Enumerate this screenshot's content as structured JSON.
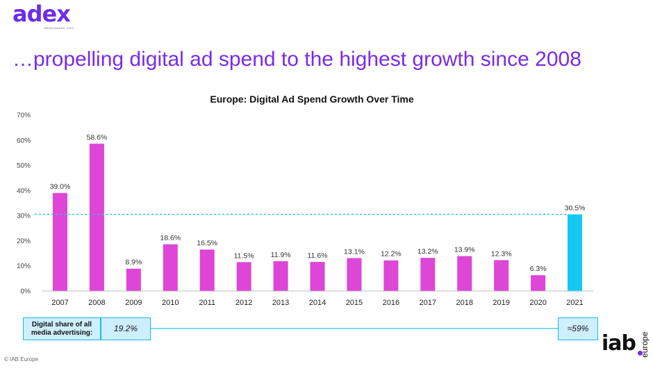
{
  "header": {
    "logo_text": "adex",
    "logo_sub": "BENCHMARK 2021",
    "headline": "…propelling digital ad spend to the highest growth since 2008"
  },
  "colors": {
    "bar": "#dd46d6",
    "highlight_bar": "#13c8f2",
    "reference_line": "#29c5e8",
    "accent": "#7a2be8"
  },
  "chart_data": {
    "type": "bar",
    "title": "Europe: Digital Ad Spend Growth Over Time",
    "xlabel": "",
    "ylabel": "",
    "ylim": [
      0,
      70
    ],
    "yticks": [
      0,
      10,
      20,
      30,
      40,
      50,
      60,
      70
    ],
    "ytick_labels": [
      "0%",
      "10%",
      "20%",
      "30%",
      "40%",
      "50%",
      "60%",
      "70%"
    ],
    "categories": [
      "2007",
      "2008",
      "2009",
      "2010",
      "2011",
      "2012",
      "2013",
      "2014",
      "2015",
      "2016",
      "2017",
      "2018",
      "2019",
      "2020",
      "2021"
    ],
    "values": [
      39.0,
      58.6,
      8.9,
      18.6,
      16.5,
      11.5,
      11.9,
      11.6,
      13.1,
      12.2,
      13.2,
      13.9,
      12.3,
      6.3,
      30.5
    ],
    "labels": [
      "39.0%",
      "58.6%",
      "8.9%",
      "18.6%",
      "16.5%",
      "11.5%",
      "11.9%",
      "11.6%",
      "13.1%",
      "12.2%",
      "13.2%",
      "13.9%",
      "12.3%",
      "6.3%",
      "30.5%"
    ],
    "highlight_category": "2021",
    "reference_line": 30.5,
    "grid": false
  },
  "digital_share": {
    "label": "Digital share of all media advertising:",
    "start_value": "19.2%",
    "end_value": "≈59%"
  },
  "footer": {
    "iab_logo": "iab",
    "iab_region": "europe",
    "copyright": "© IAB Europe"
  }
}
